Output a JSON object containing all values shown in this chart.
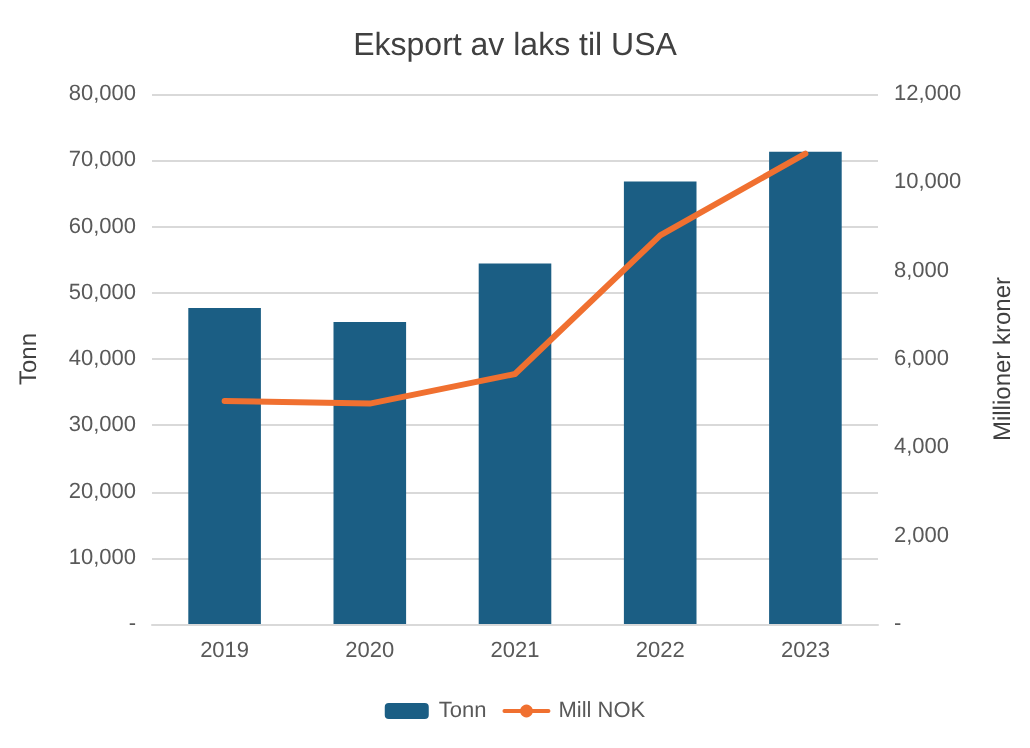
{
  "chart_data": {
    "type": "bar",
    "title": "Eksport av laks til USA",
    "ylabel": "Tonn",
    "y2label": "Millioner kroner",
    "categories": [
      "2019",
      "2020",
      "2021",
      "2022",
      "2023"
    ],
    "series": [
      {
        "name": "Tonn",
        "color": "#1b5e84",
        "values": [
          47700,
          45600,
          54400,
          66800,
          71300
        ]
      },
      {
        "name": "Mill NOK",
        "type": "line",
        "axis": "y2",
        "color": "#f07030",
        "values": [
          5050,
          4990,
          5660,
          8800,
          10650
        ]
      }
    ],
    "ylim": [
      0,
      80000
    ],
    "yticks": [
      {
        "value": 0,
        "label": "-"
      },
      {
        "value": 10000,
        "label": "10,000"
      },
      {
        "value": 20000,
        "label": "20,000"
      },
      {
        "value": 30000,
        "label": "30,000"
      },
      {
        "value": 40000,
        "label": "40,000"
      },
      {
        "value": 50000,
        "label": "50,000"
      },
      {
        "value": 60000,
        "label": "60,000"
      },
      {
        "value": 70000,
        "label": "70,000"
      },
      {
        "value": 80000,
        "label": "80,000"
      }
    ],
    "y2lim": [
      0,
      12000
    ],
    "y2ticks": [
      {
        "value": 0,
        "label": "-"
      },
      {
        "value": 2000,
        "label": "2,000"
      },
      {
        "value": 4000,
        "label": "4,000"
      },
      {
        "value": 6000,
        "label": "6,000"
      },
      {
        "value": 8000,
        "label": "8,000"
      },
      {
        "value": 10000,
        "label": "10,000"
      },
      {
        "value": 12000,
        "label": "12,000"
      }
    ],
    "grid": "y",
    "legend": "bottom",
    "marker": "none",
    "line_style": "solid"
  }
}
